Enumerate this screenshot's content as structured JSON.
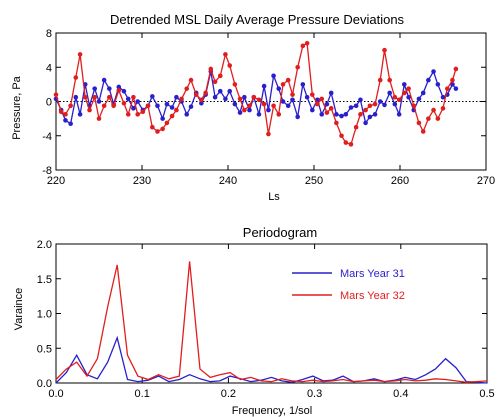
{
  "chart_data": [
    {
      "type": "line",
      "title": "Detrended MSL Daily Average Pressure Deviations",
      "xlabel": "Ls",
      "ylabel": "Pressure, Pa",
      "xlim": [
        220,
        270
      ],
      "ylim": [
        -8,
        8
      ],
      "xticks": [
        "220",
        "230",
        "240",
        "250",
        "260",
        "270"
      ],
      "yticks": [
        "8",
        "4",
        "0",
        "-4",
        "-8"
      ],
      "zero_line": "dotted",
      "series": [
        {
          "color": "#2a1fcc",
          "markers": true,
          "x": [
            220.0,
            220.6,
            221.1,
            221.7,
            222.3,
            222.8,
            223.4,
            223.9,
            224.5,
            225.0,
            225.6,
            226.2,
            226.7,
            227.3,
            227.9,
            228.4,
            229.0,
            229.5,
            230.1,
            230.7,
            231.2,
            231.8,
            232.4,
            232.9,
            233.5,
            234.0,
            234.6,
            235.2,
            235.7,
            236.3,
            236.9,
            237.4,
            238.0,
            238.5,
            239.1,
            239.7,
            240.2,
            240.8,
            241.4,
            241.9,
            242.5,
            243.0,
            243.6,
            244.2,
            244.7,
            245.3,
            245.9,
            246.4,
            247.0,
            247.5,
            248.1,
            248.7,
            249.2,
            249.8,
            250.4,
            250.9,
            251.5,
            252.0,
            252.6,
            253.2,
            253.7,
            254.3,
            254.9,
            255.4,
            256.0,
            256.5,
            257.1,
            257.7,
            258.2,
            258.8,
            259.4,
            259.9,
            260.5,
            261.0,
            261.6,
            262.2,
            262.7,
            263.3,
            263.9,
            264.4,
            265.0,
            265.5,
            266.1,
            266.5
          ],
          "y": [
            0.3,
            -1.0,
            -2.2,
            -2.6,
            0.5,
            -1.5,
            2.0,
            -0.5,
            1.5,
            0.0,
            2.5,
            1.5,
            -0.3,
            1.7,
            1.2,
            0.3,
            -0.8,
            0.0,
            -1.0,
            -0.5,
            0.6,
            -0.5,
            -2.0,
            -0.3,
            -0.7,
            0.5,
            0.0,
            -1.5,
            -0.6,
            1.0,
            -0.2,
            0.8,
            3.5,
            0.5,
            1.2,
            0.3,
            1.2,
            -0.3,
            -1.3,
            0.5,
            -1.0,
            0.5,
            -1.5,
            1.8,
            -1.0,
            3.0,
            1.5,
            0.0,
            -0.5,
            0.2,
            -1.8,
            2.0,
            0.5,
            -1.0,
            0.2,
            -1.5,
            -0.3,
            1.0,
            -1.5,
            -1.7,
            -1.5,
            -0.7,
            -0.5,
            0.2,
            -2.5,
            -1.8,
            -1.5,
            0.0,
            -0.4,
            1.0,
            -0.3,
            -1.5,
            2.0,
            0.5,
            -1.0,
            0.3,
            1.0,
            2.5,
            3.5,
            2.0,
            0.5,
            0.8,
            2.0,
            1.5
          ]
        },
        {
          "color": "#e11e1e",
          "markers": true,
          "x": [
            220.0,
            220.6,
            221.1,
            221.7,
            222.3,
            222.8,
            223.4,
            223.9,
            224.5,
            225.0,
            225.6,
            226.2,
            226.7,
            227.3,
            227.9,
            228.4,
            229.0,
            229.5,
            230.1,
            230.7,
            231.2,
            231.8,
            232.4,
            232.9,
            233.5,
            234.0,
            234.6,
            235.2,
            235.7,
            236.3,
            236.9,
            237.4,
            238.0,
            238.5,
            239.1,
            239.7,
            240.2,
            240.8,
            241.4,
            241.9,
            242.5,
            243.0,
            243.6,
            244.2,
            244.7,
            245.3,
            245.9,
            246.4,
            247.0,
            247.5,
            248.1,
            248.7,
            249.2,
            249.8,
            250.4,
            250.9,
            251.5,
            252.0,
            252.6,
            253.2,
            253.7,
            254.3,
            254.9,
            255.4,
            256.0,
            256.5,
            257.1,
            257.7,
            258.2,
            258.8,
            259.4,
            259.9,
            260.5,
            261.0,
            261.6,
            262.2,
            262.7,
            263.3,
            263.9,
            264.4,
            265.0,
            265.5,
            266.1,
            266.5
          ],
          "y": [
            0.8,
            -1.2,
            -1.5,
            -0.5,
            2.8,
            5.5,
            0.5,
            -1.0,
            0.5,
            -2.0,
            -0.5,
            0.5,
            -0.5,
            1.3,
            -0.2,
            -1.5,
            0.5,
            -1.5,
            -1.2,
            -0.5,
            -3.0,
            -3.5,
            -3.2,
            -2.5,
            -1.7,
            -1.0,
            0.3,
            1.5,
            2.5,
            0.8,
            0.2,
            1.0,
            3.8,
            2.3,
            3.0,
            5.5,
            4.2,
            2.0,
            0.3,
            -1.0,
            -0.5,
            0.5,
            0.2,
            -0.3,
            -3.8,
            -0.5,
            -1.5,
            2.0,
            2.5,
            0.8,
            4.0,
            6.5,
            6.8,
            0.8,
            -0.3,
            0.3,
            -1.3,
            -0.8,
            -2.5,
            -4.0,
            -4.8,
            -5.0,
            -3.0,
            -1.5,
            -1.0,
            -0.5,
            -0.3,
            2.5,
            6.0,
            2.5,
            0.5,
            0.2,
            1.0,
            1.5,
            -0.5,
            -2.5,
            -3.5,
            -2.0,
            -1.0,
            -2.0,
            -0.8,
            1.5,
            2.5,
            3.8
          ]
        }
      ]
    },
    {
      "type": "line",
      "title": "Periodogram",
      "xlabel": "Frequency, 1/sol",
      "ylabel": "Varaince",
      "xlim": [
        0.0,
        0.5
      ],
      "ylim": [
        0.0,
        2.0
      ],
      "xticks": [
        "0.0",
        "0.1",
        "0.2",
        "0.3",
        "0.4",
        "0.5"
      ],
      "yticks": [
        "2.0",
        "1.5",
        "1.0",
        "0.5",
        "0.0"
      ],
      "legend": "top-right",
      "series": [
        {
          "name": "Mars Year 31",
          "color": "#2a1fcc",
          "x": [
            0.0,
            0.012,
            0.024,
            0.036,
            0.048,
            0.06,
            0.071,
            0.083,
            0.095,
            0.107,
            0.119,
            0.131,
            0.143,
            0.155,
            0.167,
            0.179,
            0.19,
            0.202,
            0.214,
            0.226,
            0.238,
            0.25,
            0.262,
            0.274,
            0.286,
            0.298,
            0.31,
            0.321,
            0.333,
            0.345,
            0.357,
            0.369,
            0.381,
            0.393,
            0.405,
            0.417,
            0.429,
            0.44,
            0.452,
            0.464,
            0.476,
            0.488,
            0.5
          ],
          "y": [
            0.0,
            0.15,
            0.4,
            0.12,
            0.06,
            0.3,
            0.65,
            0.05,
            0.02,
            0.04,
            0.1,
            0.02,
            0.05,
            0.12,
            0.06,
            0.02,
            0.03,
            0.1,
            0.06,
            0.02,
            0.04,
            0.08,
            0.03,
            0.01,
            0.05,
            0.1,
            0.03,
            0.04,
            0.1,
            0.02,
            0.03,
            0.06,
            0.02,
            0.04,
            0.08,
            0.05,
            0.12,
            0.2,
            0.35,
            0.22,
            0.02,
            0.01,
            0.0
          ]
        },
        {
          "name": "Mars Year 32",
          "color": "#e11e1e",
          "x": [
            0.0,
            0.012,
            0.024,
            0.036,
            0.048,
            0.06,
            0.071,
            0.083,
            0.095,
            0.107,
            0.119,
            0.131,
            0.143,
            0.155,
            0.167,
            0.179,
            0.19,
            0.202,
            0.214,
            0.226,
            0.238,
            0.25,
            0.262,
            0.274,
            0.286,
            0.298,
            0.31,
            0.321,
            0.333,
            0.345,
            0.357,
            0.369,
            0.381,
            0.393,
            0.405,
            0.417,
            0.429,
            0.44,
            0.452,
            0.464,
            0.476,
            0.488,
            0.5
          ],
          "y": [
            0.05,
            0.2,
            0.3,
            0.1,
            0.35,
            1.1,
            1.7,
            0.4,
            0.1,
            0.05,
            0.12,
            0.06,
            0.1,
            1.75,
            0.2,
            0.08,
            0.12,
            0.15,
            0.05,
            0.08,
            0.03,
            0.02,
            0.06,
            0.03,
            0.02,
            0.04,
            0.02,
            0.03,
            0.05,
            0.02,
            0.03,
            0.04,
            0.02,
            0.03,
            0.05,
            0.03,
            0.04,
            0.06,
            0.05,
            0.03,
            0.01,
            0.02,
            0.03
          ]
        }
      ]
    }
  ]
}
